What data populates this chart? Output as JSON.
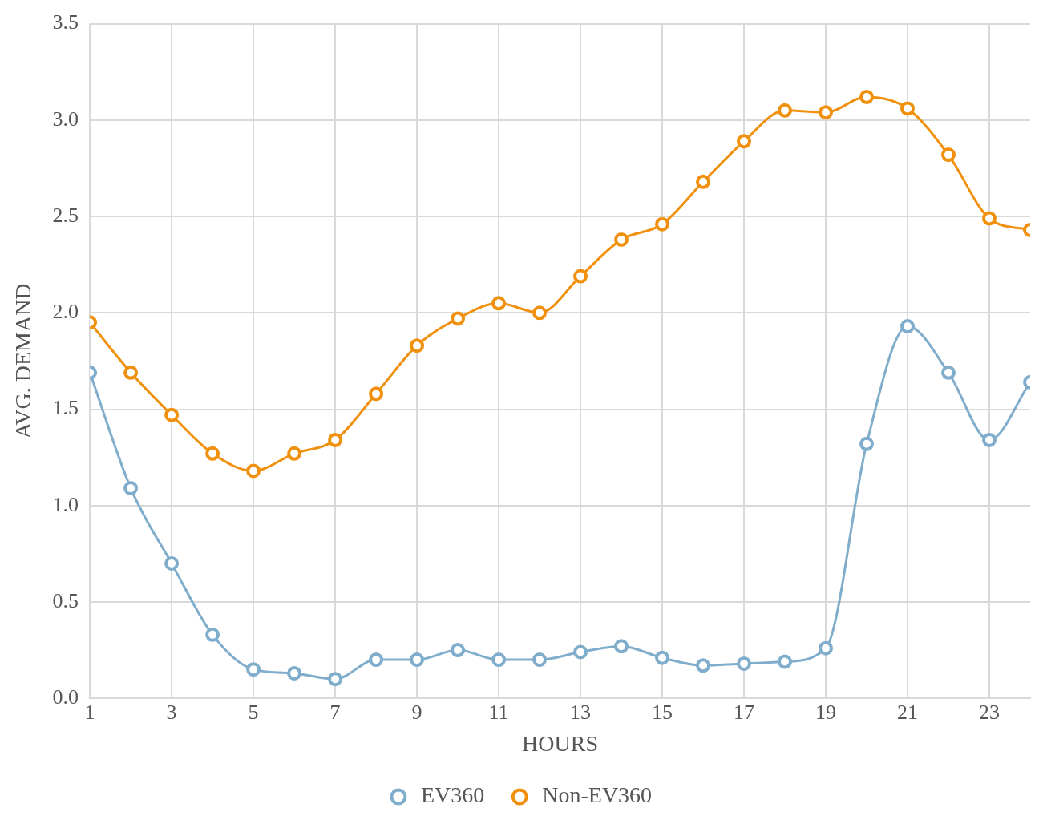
{
  "chart_data": {
    "type": "line",
    "xlabel": "HOURS",
    "ylabel": "AVG. DEMAND",
    "x": [
      1,
      2,
      3,
      4,
      5,
      6,
      7,
      8,
      9,
      10,
      11,
      12,
      13,
      14,
      15,
      16,
      17,
      18,
      19,
      20,
      21,
      22,
      23,
      24
    ],
    "xlim": [
      1,
      24
    ],
    "xticks": [
      1,
      3,
      5,
      7,
      9,
      11,
      13,
      15,
      17,
      19,
      21,
      23
    ],
    "ylim": [
      0,
      3.5
    ],
    "yticks": [
      {
        "value": 0,
        "label": "0.0"
      },
      0.5,
      {
        "value": 1,
        "label": "1.0"
      },
      1.5,
      {
        "value": 2,
        "label": "2.0"
      },
      2.5,
      {
        "value": 3,
        "label": "3.0"
      },
      3.5
    ],
    "grid": true,
    "legend": "bottom",
    "marker": "circle",
    "line_style": "solid",
    "series": [
      {
        "name": "EV360",
        "color": "#7fadcb",
        "values": [
          1.69,
          1.09,
          0.7,
          0.33,
          0.15,
          0.13,
          0.1,
          0.2,
          0.2,
          0.25,
          0.2,
          0.2,
          0.24,
          0.27,
          0.21,
          0.17,
          0.18,
          0.19,
          0.26,
          1.32,
          1.93,
          1.69,
          1.34,
          1.64
        ]
      },
      {
        "name": "Non-EV360",
        "color": "#f0900c",
        "values": [
          1.95,
          1.69,
          1.47,
          1.27,
          1.18,
          1.27,
          1.34,
          1.58,
          1.83,
          1.97,
          2.05,
          2,
          2.19,
          2.38,
          2.46,
          2.68,
          2.89,
          3.05,
          3.04,
          3.12,
          3.06,
          2.82,
          2.49,
          2.43
        ]
      }
    ]
  }
}
